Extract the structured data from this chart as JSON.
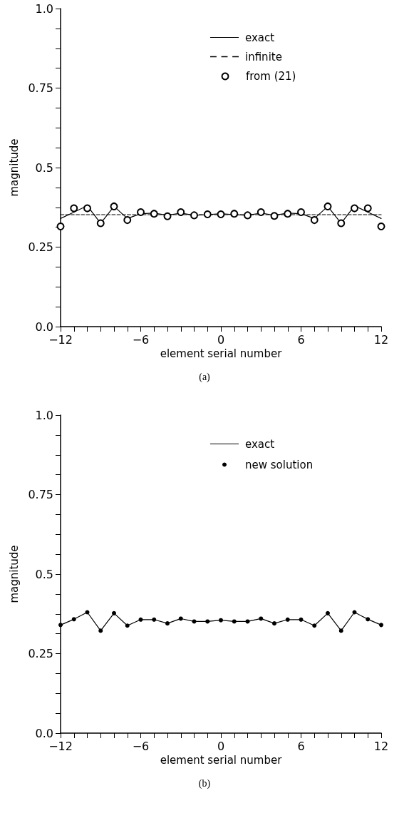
{
  "chart_data": [
    {
      "type": "line",
      "xlabel": "element serial number",
      "ylabel": "magnitude",
      "annotations": [
        "(a)"
      ],
      "legend": "top",
      "grid": false,
      "xlim": [
        -12,
        12
      ],
      "ylim": [
        0,
        1
      ],
      "xticks": [
        {
          "value": -12,
          "label": "−12"
        },
        {
          "value": -11,
          "label": null
        },
        {
          "value": -10,
          "label": null
        },
        {
          "value": -9,
          "label": null
        },
        {
          "value": -8,
          "label": null
        },
        {
          "value": -7,
          "label": null
        },
        {
          "value": -6,
          "label": "−6"
        },
        {
          "value": -5,
          "label": null
        },
        {
          "value": -4,
          "label": null
        },
        {
          "value": -3,
          "label": null
        },
        {
          "value": -2,
          "label": null
        },
        {
          "value": -1,
          "label": null
        },
        0,
        {
          "value": 1,
          "label": null
        },
        {
          "value": 2,
          "label": null
        },
        {
          "value": 3,
          "label": null
        },
        {
          "value": 4,
          "label": null
        },
        {
          "value": 5,
          "label": null
        },
        6,
        {
          "value": 7,
          "label": null
        },
        {
          "value": 8,
          "label": null
        },
        {
          "value": 9,
          "label": null
        },
        {
          "value": 10,
          "label": null
        },
        {
          "value": 11,
          "label": null
        },
        12
      ],
      "yticks": [
        {
          "value": 0,
          "label": "0.0"
        },
        {
          "value": 0.0625,
          "label": null
        },
        {
          "value": 0.125,
          "label": null
        },
        {
          "value": 0.1875,
          "label": null
        },
        0.25,
        {
          "value": 0.3125,
          "label": null
        },
        {
          "value": 0.375,
          "label": null
        },
        {
          "value": 0.4375,
          "label": null
        },
        0.5,
        {
          "value": 0.5625,
          "label": null
        },
        {
          "value": 0.625,
          "label": null
        },
        {
          "value": 0.6875,
          "label": null
        },
        0.75,
        {
          "value": 0.8125,
          "label": null
        },
        {
          "value": 0.875,
          "label": null
        },
        {
          "value": 0.9375,
          "label": null
        },
        {
          "value": 1,
          "label": "1.0"
        }
      ],
      "x": [
        -12,
        -11,
        -10,
        -9,
        -8,
        -7,
        -6,
        -5,
        -4,
        -3,
        -2,
        -1,
        0,
        1,
        2,
        3,
        4,
        5,
        6,
        7,
        8,
        9,
        10,
        11,
        12
      ],
      "series": [
        {
          "name": "exact",
          "color": "#000000",
          "marker": "none",
          "line_style": "solid",
          "values": [
            0.34,
            0.36,
            0.38,
            0.325,
            0.378,
            0.34,
            0.355,
            0.357,
            0.35,
            0.357,
            0.35,
            0.352,
            0.355,
            0.352,
            0.35,
            0.357,
            0.35,
            0.357,
            0.355,
            0.34,
            0.378,
            0.325,
            0.38,
            0.36,
            0.34
          ]
        },
        {
          "name": "infinite",
          "color": "#000000",
          "marker": "none",
          "line_style": "dashed",
          "x": [
            -12,
            12
          ],
          "values": [
            0.352,
            0.352
          ]
        },
        {
          "name": "from (21)",
          "type": "scatter",
          "color": "#000000",
          "marker": "circle",
          "values": [
            0.315,
            0.372,
            0.372,
            0.325,
            0.378,
            0.335,
            0.36,
            0.355,
            0.347,
            0.36,
            0.35,
            0.353,
            0.353,
            0.355,
            0.35,
            0.36,
            0.348,
            0.355,
            0.36,
            0.335,
            0.378,
            0.325,
            0.372,
            0.372,
            0.315
          ]
        }
      ]
    },
    {
      "type": "line",
      "xlabel": "element serial number",
      "ylabel": "magnitude",
      "annotations": [
        "(b)"
      ],
      "legend": "top",
      "grid": false,
      "xlim": [
        -12,
        12
      ],
      "ylim": [
        0,
        1
      ],
      "xticks": [
        {
          "value": -12,
          "label": "−12"
        },
        {
          "value": -11,
          "label": null
        },
        {
          "value": -10,
          "label": null
        },
        {
          "value": -9,
          "label": null
        },
        {
          "value": -8,
          "label": null
        },
        {
          "value": -7,
          "label": null
        },
        {
          "value": -6,
          "label": "−6"
        },
        {
          "value": -5,
          "label": null
        },
        {
          "value": -4,
          "label": null
        },
        {
          "value": -3,
          "label": null
        },
        {
          "value": -2,
          "label": null
        },
        {
          "value": -1,
          "label": null
        },
        0,
        {
          "value": 1,
          "label": null
        },
        {
          "value": 2,
          "label": null
        },
        {
          "value": 3,
          "label": null
        },
        {
          "value": 4,
          "label": null
        },
        {
          "value": 5,
          "label": null
        },
        6,
        {
          "value": 7,
          "label": null
        },
        {
          "value": 8,
          "label": null
        },
        {
          "value": 9,
          "label": null
        },
        {
          "value": 10,
          "label": null
        },
        {
          "value": 11,
          "label": null
        },
        12
      ],
      "yticks": [
        {
          "value": 0,
          "label": "0.0"
        },
        {
          "value": 0.0625,
          "label": null
        },
        {
          "value": 0.125,
          "label": null
        },
        {
          "value": 0.1875,
          "label": null
        },
        0.25,
        {
          "value": 0.3125,
          "label": null
        },
        {
          "value": 0.375,
          "label": null
        },
        {
          "value": 0.4375,
          "label": null
        },
        0.5,
        {
          "value": 0.5625,
          "label": null
        },
        {
          "value": 0.625,
          "label": null
        },
        {
          "value": 0.6875,
          "label": null
        },
        0.75,
        {
          "value": 0.8125,
          "label": null
        },
        {
          "value": 0.875,
          "label": null
        },
        {
          "value": 0.9375,
          "label": null
        },
        {
          "value": 1,
          "label": "1.0"
        }
      ],
      "x": [
        -12,
        -11,
        -10,
        -9,
        -8,
        -7,
        -6,
        -5,
        -4,
        -3,
        -2,
        -1,
        0,
        1,
        2,
        3,
        4,
        5,
        6,
        7,
        8,
        9,
        10,
        11,
        12
      ],
      "series": [
        {
          "name": "exact",
          "color": "#000000",
          "marker": "none",
          "line_style": "solid",
          "values": [
            0.34,
            0.358,
            0.38,
            0.322,
            0.377,
            0.338,
            0.357,
            0.357,
            0.345,
            0.36,
            0.351,
            0.351,
            0.355,
            0.351,
            0.351,
            0.36,
            0.345,
            0.357,
            0.357,
            0.338,
            0.377,
            0.322,
            0.38,
            0.358,
            0.34
          ]
        },
        {
          "name": "new solution",
          "type": "scatter",
          "color": "#000000",
          "values": [
            0.34,
            0.358,
            0.38,
            0.322,
            0.377,
            0.338,
            0.357,
            0.357,
            0.345,
            0.36,
            0.351,
            0.351,
            0.355,
            0.351,
            0.351,
            0.36,
            0.345,
            0.357,
            0.357,
            0.338,
            0.377,
            0.322,
            0.38,
            0.358,
            0.34
          ]
        }
      ]
    }
  ]
}
